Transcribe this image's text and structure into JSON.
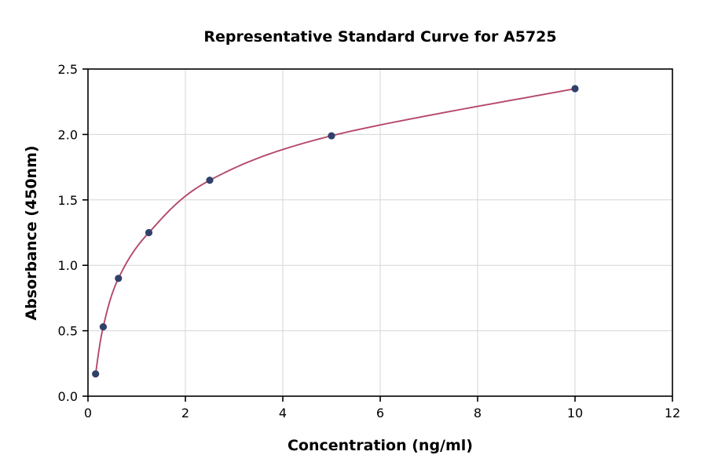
{
  "chart_data": {
    "type": "scatter",
    "title": "Representative Standard Curve for A5725",
    "xlabel": "Concentration (ng/ml)",
    "ylabel": "Absorbance (450nm)",
    "xlim": [
      0,
      12
    ],
    "ylim": [
      0,
      2.5
    ],
    "xticks": [
      0,
      2,
      4,
      6,
      8,
      10,
      12
    ],
    "xtick_labels": [
      "0",
      "2",
      "4",
      "6",
      "8",
      "10",
      "12"
    ],
    "yticks": [
      0.0,
      0.5,
      1.0,
      1.5,
      2.0,
      2.5
    ],
    "ytick_labels": [
      "0.0",
      "0.5",
      "1.0",
      "1.5",
      "2.0",
      "2.5"
    ],
    "grid": true,
    "legend": "none",
    "points": [
      {
        "x": 0.156,
        "y": 0.17
      },
      {
        "x": 0.313,
        "y": 0.53
      },
      {
        "x": 0.625,
        "y": 0.9
      },
      {
        "x": 1.25,
        "y": 1.25
      },
      {
        "x": 2.5,
        "y": 1.65
      },
      {
        "x": 5.0,
        "y": 1.99
      },
      {
        "x": 10.0,
        "y": 2.35
      }
    ],
    "curve_color": "#b5486b",
    "marker_color": "#31406b",
    "grid_color": "#d6d6d6",
    "axis_color": "#000000"
  }
}
